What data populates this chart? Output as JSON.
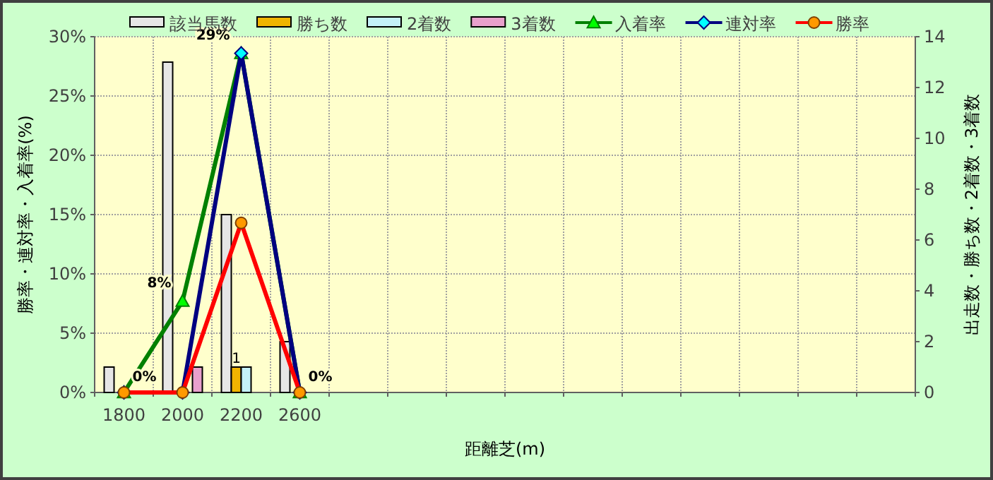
{
  "chart_data": {
    "type": "bar",
    "xlabel": "距離芝(m)",
    "ylabel": "勝率・連対率・入着率(%)",
    "y2label": "出走数・勝ち数・2着数・3着数",
    "categories": [
      "1800",
      "2000",
      "2200",
      "2600",
      null,
      null,
      null,
      null,
      null,
      null,
      null,
      null,
      null,
      null
    ],
    "ylim": [
      0,
      30
    ],
    "yticks": [
      {
        "value": 0,
        "label": "0%"
      },
      {
        "value": 5,
        "label": "5%"
      },
      {
        "value": 10,
        "label": "10%"
      },
      {
        "value": 15,
        "label": "15%"
      },
      {
        "value": 20,
        "label": "20%"
      },
      {
        "value": 25,
        "label": "25%"
      },
      {
        "value": 30,
        "label": "30%"
      }
    ],
    "y2lim": [
      0,
      14
    ],
    "y2ticks": [
      0,
      2,
      4,
      6,
      8,
      10,
      12,
      14
    ],
    "grid": true,
    "legend": "top",
    "series": [
      {
        "name": "該当馬数",
        "axis": "y2",
        "color": "#e6e6e6",
        "values": [
          1,
          13,
          7,
          2,
          null,
          null,
          null,
          null,
          null,
          null,
          null,
          null,
          null,
          null
        ]
      },
      {
        "name": "勝ち数",
        "axis": "y2",
        "color": "#f0b400",
        "values": [
          0,
          0,
          1,
          0,
          null,
          null,
          null,
          null,
          null,
          null,
          null,
          null,
          null,
          null
        ],
        "value_labels": [
          null,
          null,
          "1",
          null,
          null,
          null,
          null,
          null,
          null,
          null,
          null,
          null,
          null,
          null
        ]
      },
      {
        "name": "2着数",
        "axis": "y2",
        "color": "#c4f0f8",
        "values": [
          0,
          0,
          1,
          0,
          null,
          null,
          null,
          null,
          null,
          null,
          null,
          null,
          null,
          null
        ]
      },
      {
        "name": "3着数",
        "axis": "y2",
        "color": "#e8a0cc",
        "values": [
          0,
          1,
          0,
          0,
          null,
          null,
          null,
          null,
          null,
          null,
          null,
          null,
          null,
          null
        ]
      },
      {
        "name": "入着率",
        "type": "line",
        "color": "#008000",
        "marker": "triangle",
        "values": [
          0,
          7.7,
          28.6,
          0,
          null,
          null,
          null,
          null,
          null,
          null,
          null,
          null,
          null,
          null
        ],
        "value_labels": [
          "0%",
          "8%",
          "29%",
          "0%",
          null,
          null,
          null,
          null,
          null,
          null,
          null,
          null,
          null,
          null
        ]
      },
      {
        "name": "連対率",
        "type": "line",
        "color": "#000080",
        "marker": "diamond",
        "values": [
          0,
          0,
          28.6,
          0,
          null,
          null,
          null,
          null,
          null,
          null,
          null,
          null,
          null,
          null
        ]
      },
      {
        "name": "勝率",
        "type": "line",
        "color": "#ff0000",
        "marker": "circle",
        "values": [
          0,
          0,
          14.3,
          0,
          null,
          null,
          null,
          null,
          null,
          null,
          null,
          null,
          null,
          null
        ]
      }
    ]
  }
}
